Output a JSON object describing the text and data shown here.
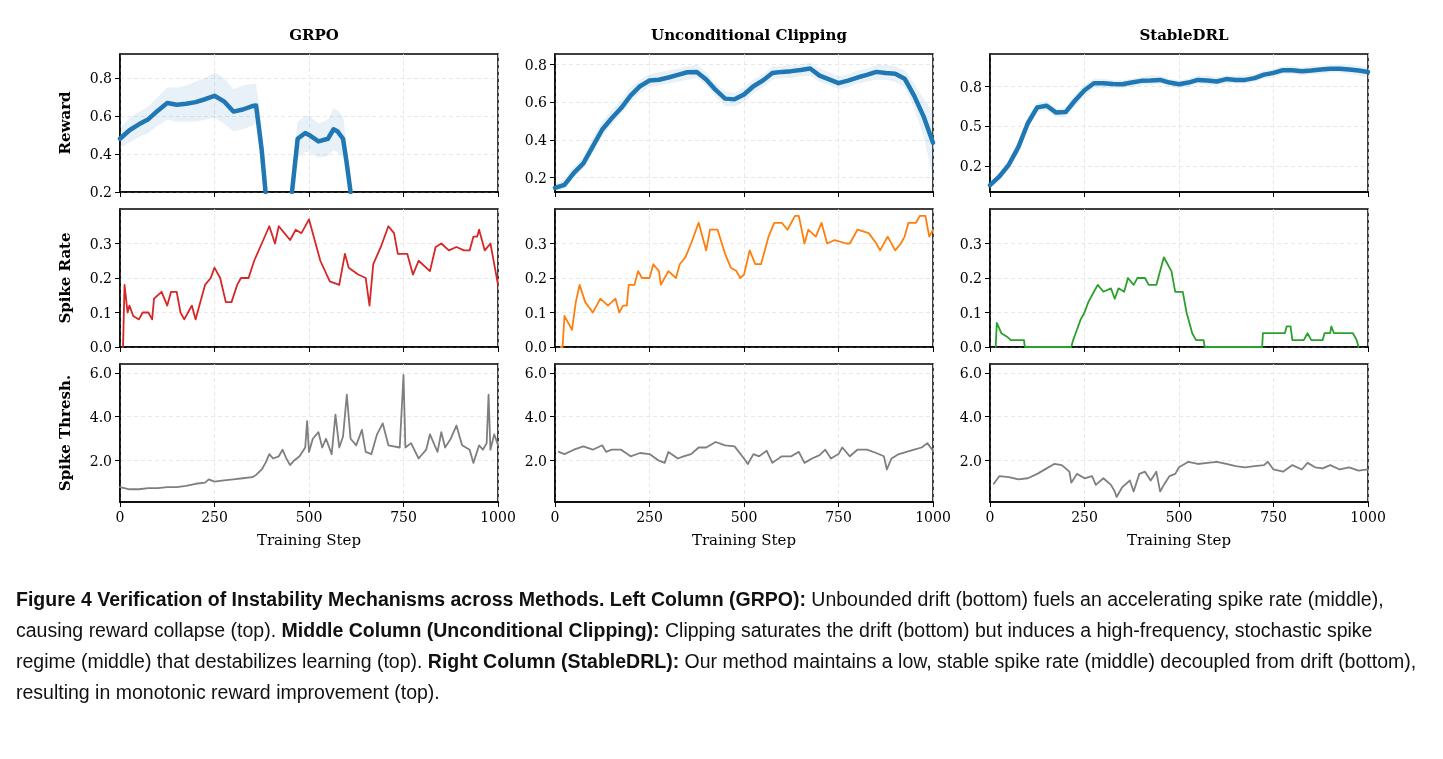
{
  "chart_data": [
    {
      "type": "line",
      "title": "GRPO",
      "ylabel": "Reward",
      "xlim": [
        0,
        1000
      ],
      "xticks": [
        0,
        250,
        500,
        750,
        1000
      ],
      "ylim": [
        0.2,
        0.926
      ],
      "yticks": [
        {
          "value": 0.2,
          "label": "0.2"
        },
        {
          "value": 0.4,
          "label": "0.4"
        },
        {
          "value": 0.6,
          "label": "0.6"
        },
        {
          "value": 0.8,
          "label": "0.8"
        }
      ],
      "grid": true,
      "tick_labels": "y",
      "marker": "none",
      "line_style": "solid",
      "series": [
        {
          "color": "#1f77b4",
          "x": [
            0,
            25,
            50,
            75,
            100,
            125,
            150,
            175,
            200,
            225,
            250,
            275,
            300,
            325,
            350,
            360,
            375,
            385,
            400,
            450,
            455,
            470,
            490,
            500,
            525,
            550,
            565,
            575,
            590,
            600,
            610
          ],
          "values": [
            0.48,
            0.525,
            0.556,
            0.583,
            0.628,
            0.668,
            0.659,
            0.664,
            0.673,
            0.688,
            0.706,
            0.677,
            0.623,
            0.634,
            0.652,
            0.655,
            0.42,
            0.2,
            null,
            null,
            0.2,
            0.48,
            0.51,
            0.5,
            0.466,
            0.48,
            0.53,
            0.52,
            0.48,
            0.35,
            0.2
          ],
          "lower": [
            0.43,
            0.46,
            0.49,
            0.51,
            0.55,
            0.58,
            0.57,
            0.57,
            0.57,
            0.58,
            0.59,
            0.56,
            0.52,
            0.53,
            0.55,
            0.56,
            0.3,
            0.2,
            null,
            null,
            0.2,
            0.38,
            0.41,
            0.41,
            0.38,
            0.39,
            0.42,
            0.41,
            0.38,
            0.25,
            0.2
          ],
          "upper": [
            0.53,
            0.59,
            0.62,
            0.65,
            0.7,
            0.75,
            0.75,
            0.76,
            0.78,
            0.8,
            0.83,
            0.8,
            0.74,
            0.76,
            0.77,
            0.77,
            0.55,
            0.3,
            null,
            null,
            0.3,
            0.57,
            0.6,
            0.6,
            0.56,
            0.58,
            0.64,
            0.63,
            0.6,
            0.45,
            0.22
          ]
        }
      ]
    },
    {
      "type": "line",
      "title": "Unconditional Clipping",
      "xlim": [
        0,
        1000
      ],
      "xticks": [
        0,
        250,
        500,
        750,
        1000
      ],
      "ylim": [
        0.124,
        0.857
      ],
      "yticks": [
        {
          "value": 0.2,
          "label": "0.2"
        },
        {
          "value": 0.4,
          "label": "0.4"
        },
        {
          "value": 0.6,
          "label": "0.6"
        },
        {
          "value": 0.8,
          "label": "0.8"
        }
      ],
      "grid": true,
      "tick_labels": "y",
      "marker": "none",
      "line_style": "solid",
      "series": [
        {
          "color": "#1f77b4",
          "x": [
            0,
            25,
            50,
            75,
            100,
            125,
            150,
            175,
            200,
            225,
            250,
            275,
            300,
            325,
            350,
            375,
            400,
            425,
            450,
            475,
            500,
            525,
            550,
            575,
            600,
            625,
            650,
            675,
            700,
            725,
            750,
            775,
            800,
            825,
            850,
            875,
            900,
            925,
            950,
            975,
            1000
          ],
          "values": [
            0.146,
            0.162,
            0.226,
            0.276,
            0.366,
            0.456,
            0.516,
            0.57,
            0.636,
            0.686,
            0.716,
            0.72,
            0.732,
            0.746,
            0.76,
            0.762,
            0.722,
            0.666,
            0.62,
            0.616,
            0.642,
            0.686,
            0.716,
            0.756,
            0.762,
            0.766,
            0.772,
            0.78,
            0.742,
            0.722,
            0.702,
            0.716,
            0.732,
            0.746,
            0.762,
            0.756,
            0.752,
            0.726,
            0.636,
            0.526,
            0.386
          ],
          "lower": [
            0.13,
            0.14,
            0.2,
            0.25,
            0.33,
            0.42,
            0.48,
            0.54,
            0.6,
            0.65,
            0.68,
            0.69,
            0.7,
            0.71,
            0.72,
            0.73,
            0.69,
            0.63,
            0.58,
            0.58,
            0.6,
            0.65,
            0.68,
            0.72,
            0.73,
            0.73,
            0.74,
            0.74,
            0.71,
            0.69,
            0.67,
            0.68,
            0.7,
            0.71,
            0.72,
            0.72,
            0.71,
            0.68,
            0.57,
            0.42,
            0.2
          ],
          "upper": [
            0.17,
            0.19,
            0.26,
            0.31,
            0.41,
            0.5,
            0.56,
            0.61,
            0.68,
            0.72,
            0.75,
            0.76,
            0.77,
            0.78,
            0.79,
            0.8,
            0.76,
            0.7,
            0.66,
            0.65,
            0.68,
            0.72,
            0.75,
            0.79,
            0.79,
            0.8,
            0.8,
            0.81,
            0.78,
            0.76,
            0.74,
            0.75,
            0.77,
            0.78,
            0.8,
            0.8,
            0.79,
            0.77,
            0.7,
            0.62,
            0.55
          ]
        }
      ]
    },
    {
      "type": "line",
      "title": "StableDRL",
      "xlim": [
        0,
        1000
      ],
      "xticks": [
        0,
        250,
        500,
        750,
        1000
      ],
      "ylim": [
        0.087,
        0.956
      ],
      "yticks": [
        {
          "value": 0.25,
          "label": "0.2"
        },
        {
          "value": 0.5,
          "label": "0.5"
        },
        {
          "value": 0.75,
          "label": "0.8"
        }
      ],
      "grid": true,
      "tick_labels": "y",
      "marker": "none",
      "line_style": "solid",
      "series": [
        {
          "color": "#1f77b4",
          "x": [
            0,
            25,
            50,
            75,
            100,
            125,
            150,
            175,
            200,
            225,
            250,
            275,
            300,
            325,
            350,
            375,
            400,
            425,
            450,
            475,
            500,
            525,
            550,
            575,
            600,
            625,
            650,
            675,
            700,
            725,
            750,
            775,
            800,
            825,
            850,
            875,
            900,
            925,
            950,
            975,
            1000
          ],
          "values": [
            0.13,
            0.185,
            0.26,
            0.37,
            0.52,
            0.62,
            0.63,
            0.587,
            0.59,
            0.663,
            0.728,
            0.772,
            0.772,
            0.767,
            0.765,
            0.776,
            0.787,
            0.789,
            0.793,
            0.776,
            0.765,
            0.776,
            0.793,
            0.789,
            0.783,
            0.798,
            0.793,
            0.793,
            0.804,
            0.826,
            0.837,
            0.854,
            0.854,
            0.848,
            0.852,
            0.859,
            0.863,
            0.863,
            0.859,
            0.852,
            0.843
          ],
          "lower": [
            0.11,
            0.16,
            0.23,
            0.33,
            0.48,
            0.59,
            0.6,
            0.56,
            0.56,
            0.63,
            0.69,
            0.74,
            0.74,
            0.74,
            0.74,
            0.75,
            0.76,
            0.76,
            0.77,
            0.75,
            0.74,
            0.75,
            0.77,
            0.76,
            0.76,
            0.77,
            0.77,
            0.77,
            0.78,
            0.8,
            0.81,
            0.83,
            0.83,
            0.82,
            0.83,
            0.83,
            0.84,
            0.84,
            0.83,
            0.82,
            0.81
          ],
          "upper": [
            0.15,
            0.21,
            0.29,
            0.41,
            0.56,
            0.65,
            0.66,
            0.61,
            0.62,
            0.7,
            0.76,
            0.8,
            0.8,
            0.79,
            0.79,
            0.8,
            0.81,
            0.82,
            0.82,
            0.8,
            0.79,
            0.8,
            0.82,
            0.82,
            0.81,
            0.82,
            0.82,
            0.82,
            0.83,
            0.85,
            0.86,
            0.88,
            0.88,
            0.87,
            0.88,
            0.88,
            0.89,
            0.89,
            0.89,
            0.88,
            0.87
          ]
        }
      ]
    },
    {
      "type": "line",
      "ylabel": "Spike Rate",
      "xlim": [
        0,
        1000
      ],
      "xticks": [
        0,
        250,
        500,
        750,
        1000
      ],
      "ylim": [
        0,
        0.4
      ],
      "yticks": [
        {
          "value": 0,
          "label": "0.0"
        },
        {
          "value": 0.1,
          "label": "0.1"
        },
        {
          "value": 0.2,
          "label": "0.2"
        },
        {
          "value": 0.3,
          "label": "0.3"
        }
      ],
      "grid": true,
      "tick_labels": "y",
      "marker": "none",
      "line_style": "solid",
      "series": [
        {
          "color": "#d62728",
          "x": [
            8,
            12,
            20,
            25,
            35,
            50,
            60,
            75,
            85,
            90,
            110,
            125,
            135,
            150,
            160,
            170,
            180,
            190,
            200,
            210,
            225,
            240,
            250,
            265,
            280,
            295,
            310,
            320,
            340,
            355,
            375,
            395,
            410,
            420,
            435,
            450,
            465,
            480,
            500,
            510,
            530,
            555,
            580,
            595,
            605,
            630,
            650,
            660,
            670,
            690,
            710,
            725,
            735,
            760,
            775,
            790,
            820,
            835,
            850,
            870,
            890,
            910,
            925,
            935,
            945,
            950,
            965,
            980,
            990,
            1000
          ],
          "values": [
            0,
            0.18,
            0.1,
            0.12,
            0.09,
            0.08,
            0.1,
            0.1,
            0.08,
            0.14,
            0.16,
            0.12,
            0.16,
            0.16,
            0.1,
            0.08,
            0.1,
            0.12,
            0.08,
            0.12,
            0.18,
            0.2,
            0.23,
            0.2,
            0.13,
            0.13,
            0.18,
            0.2,
            0.2,
            0.25,
            0.3,
            0.35,
            0.3,
            0.35,
            0.33,
            0.31,
            0.34,
            0.33,
            0.37,
            0.33,
            0.25,
            0.19,
            0.18,
            0.27,
            0.23,
            0.21,
            0.2,
            0.12,
            0.24,
            0.29,
            0.35,
            0.33,
            0.27,
            0.27,
            0.21,
            0.25,
            0.22,
            0.29,
            0.3,
            0.28,
            0.29,
            0.28,
            0.28,
            0.32,
            0.32,
            0.34,
            0.28,
            0.3,
            0.24,
            0.18
          ]
        }
      ]
    },
    {
      "type": "line",
      "xlim": [
        0,
        1000
      ],
      "xticks": [
        0,
        250,
        500,
        750,
        1000
      ],
      "ylim": [
        0,
        0.4
      ],
      "yticks": [
        {
          "value": 0,
          "label": "0.0"
        },
        {
          "value": 0.1,
          "label": "0.1"
        },
        {
          "value": 0.2,
          "label": "0.2"
        },
        {
          "value": 0.3,
          "label": "0.3"
        }
      ],
      "grid": true,
      "tick_labels": "y",
      "marker": "none",
      "line_style": "solid",
      "series": [
        {
          "color": "#ff7f0e",
          "x": [
            15,
            20,
            25,
            35,
            45,
            55,
            65,
            80,
            100,
            110,
            120,
            140,
            160,
            170,
            180,
            190,
            195,
            210,
            220,
            230,
            250,
            260,
            275,
            280,
            290,
            300,
            320,
            330,
            345,
            360,
            380,
            390,
            400,
            410,
            430,
            450,
            465,
            480,
            490,
            500,
            515,
            530,
            545,
            565,
            580,
            600,
            615,
            635,
            645,
            660,
            670,
            690,
            705,
            720,
            740,
            770,
            780,
            800,
            830,
            850,
            860,
            880,
            900,
            915,
            925,
            935,
            955,
            965,
            980,
            985,
            990,
            1000
          ],
          "values": [
            0,
            0,
            0.09,
            0.07,
            0.05,
            0.13,
            0.18,
            0.13,
            0.1,
            0.12,
            0.14,
            0.12,
            0.14,
            0.1,
            0.12,
            0.12,
            0.18,
            0.18,
            0.22,
            0.2,
            0.2,
            0.24,
            0.22,
            0.18,
            0.2,
            0.22,
            0.2,
            0.24,
            0.26,
            0.3,
            0.36,
            0.32,
            0.28,
            0.34,
            0.34,
            0.27,
            0.23,
            0.22,
            0.2,
            0.21,
            0.28,
            0.24,
            0.24,
            0.32,
            0.36,
            0.36,
            0.34,
            0.38,
            0.38,
            0.3,
            0.34,
            0.32,
            0.36,
            0.3,
            0.31,
            0.3,
            0.3,
            0.34,
            0.33,
            0.3,
            0.28,
            0.32,
            0.28,
            0.3,
            0.32,
            0.36,
            0.36,
            0.38,
            0.38,
            0.35,
            0.32,
            0.34
          ]
        }
      ]
    },
    {
      "type": "line",
      "xlim": [
        0,
        1000
      ],
      "xticks": [
        0,
        250,
        500,
        750,
        1000
      ],
      "ylim": [
        0,
        0.4
      ],
      "yticks": [
        {
          "value": 0,
          "label": "0.0"
        },
        {
          "value": 0.1,
          "label": "0.1"
        },
        {
          "value": 0.2,
          "label": "0.2"
        },
        {
          "value": 0.3,
          "label": "0.3"
        }
      ],
      "grid": true,
      "tick_labels": "y",
      "marker": "none",
      "line_style": "solid",
      "series": [
        {
          "color": "#2ca02c",
          "x": [
            15,
            18,
            30,
            45,
            55,
            90,
            92,
            215,
            220,
            230,
            240,
            250,
            260,
            275,
            285,
            300,
            320,
            330,
            340,
            355,
            365,
            380,
            390,
            410,
            420,
            440,
            450,
            460,
            470,
            480,
            490,
            510,
            520,
            535,
            545,
            565,
            568,
            720,
            722,
            780,
            785,
            795,
            800,
            830,
            840,
            850,
            880,
            885,
            900,
            903,
            910,
            960,
            970,
            975
          ],
          "values": [
            0,
            0.07,
            0.04,
            0.03,
            0.02,
            0.02,
            0,
            0,
            0.02,
            0.05,
            0.08,
            0.1,
            0.13,
            0.16,
            0.18,
            0.16,
            0.17,
            0.14,
            0.17,
            0.16,
            0.2,
            0.18,
            0.2,
            0.2,
            0.18,
            0.18,
            0.22,
            0.26,
            0.24,
            0.22,
            0.16,
            0.16,
            0.1,
            0.04,
            0.02,
            0.02,
            0,
            0,
            0.04,
            0.04,
            0.06,
            0.06,
            0.02,
            0.02,
            0.04,
            0.02,
            0.02,
            0.04,
            0.04,
            0.06,
            0.04,
            0.04,
            0.02,
            0
          ]
        }
      ]
    },
    {
      "type": "line",
      "ylabel": "Spike Thresh.",
      "xlabel": "Training Step",
      "xlim": [
        0,
        1000
      ],
      "xticks": [
        0,
        250,
        500,
        750,
        1000
      ],
      "ylim": [
        0.12,
        6.4
      ],
      "yticks": [
        {
          "value": 2,
          "label": "2.0"
        },
        {
          "value": 4,
          "label": "4.0"
        },
        {
          "value": 6,
          "label": "6.0"
        }
      ],
      "grid": true,
      "marker": "none",
      "line_style": "solid",
      "series": [
        {
          "color": "#7f7f7f",
          "x": [
            0,
            25,
            50,
            75,
            100,
            125,
            150,
            175,
            200,
            225,
            235,
            250,
            275,
            300,
            325,
            350,
            360,
            375,
            385,
            395,
            405,
            420,
            430,
            440,
            450,
            460,
            475,
            490,
            495,
            500,
            510,
            525,
            535,
            545,
            560,
            570,
            580,
            590,
            600,
            610,
            625,
            640,
            650,
            665,
            680,
            695,
            710,
            740,
            750,
            755,
            770,
            790,
            810,
            820,
            840,
            850,
            860,
            875,
            890,
            905,
            925,
            935,
            950,
            960,
            970,
            975,
            980,
            990,
            1000
          ],
          "values": [
            0.8,
            0.7,
            0.7,
            0.75,
            0.75,
            0.8,
            0.8,
            0.85,
            0.95,
            1.0,
            1.15,
            1.05,
            1.1,
            1.15,
            1.2,
            1.25,
            1.35,
            1.6,
            1.9,
            2.3,
            2.1,
            2.2,
            2.5,
            2.1,
            1.8,
            2.0,
            2.2,
            2.6,
            3.8,
            2.4,
            3.0,
            3.3,
            2.6,
            3.0,
            2.3,
            4.1,
            2.6,
            3.1,
            5.0,
            3.0,
            2.7,
            3.4,
            2.4,
            2.3,
            3.2,
            3.7,
            2.7,
            2.6,
            5.9,
            2.6,
            2.8,
            2.1,
            2.5,
            3.2,
            2.4,
            3.3,
            2.6,
            3.0,
            3.6,
            2.7,
            2.5,
            1.9,
            2.7,
            2.5,
            2.8,
            5.0,
            2.5,
            3.2,
            2.7
          ]
        }
      ]
    },
    {
      "type": "line",
      "xlabel": "Training Step",
      "xlim": [
        0,
        1000
      ],
      "xticks": [
        0,
        250,
        500,
        750,
        1000
      ],
      "ylim": [
        0.12,
        6.4
      ],
      "yticks": [
        {
          "value": 2,
          "label": "2.0"
        },
        {
          "value": 4,
          "label": "4.0"
        },
        {
          "value": 6,
          "label": "6.0"
        }
      ],
      "grid": true,
      "marker": "none",
      "line_style": "solid",
      "series": [
        {
          "color": "#7f7f7f",
          "x": [
            10,
            25,
            50,
            75,
            100,
            125,
            135,
            150,
            175,
            200,
            225,
            250,
            275,
            290,
            300,
            325,
            340,
            360,
            380,
            400,
            425,
            450,
            475,
            500,
            510,
            525,
            540,
            560,
            575,
            600,
            625,
            645,
            660,
            680,
            700,
            715,
            730,
            750,
            760,
            780,
            800,
            825,
            850,
            870,
            878,
            890,
            910,
            930,
            950,
            970,
            985,
            1000
          ],
          "values": [
            2.4,
            2.3,
            2.5,
            2.65,
            2.5,
            2.7,
            2.4,
            2.5,
            2.5,
            2.2,
            2.35,
            2.3,
            2.0,
            1.9,
            2.4,
            2.1,
            2.2,
            2.3,
            2.6,
            2.6,
            2.85,
            2.7,
            2.65,
            2.1,
            1.85,
            2.3,
            2.2,
            2.45,
            1.9,
            2.2,
            2.2,
            2.4,
            1.9,
            2.1,
            2.25,
            2.5,
            2.1,
            2.3,
            2.6,
            2.2,
            2.5,
            2.5,
            2.35,
            2.2,
            1.6,
            2.1,
            2.3,
            2.4,
            2.5,
            2.6,
            2.8,
            2.45
          ]
        }
      ]
    },
    {
      "type": "line",
      "xlabel": "Training Step",
      "xlim": [
        0,
        1000
      ],
      "xticks": [
        0,
        250,
        500,
        750,
        1000
      ],
      "ylim": [
        0.12,
        6.4
      ],
      "yticks": [
        {
          "value": 2,
          "label": "2.0"
        },
        {
          "value": 4,
          "label": "4.0"
        },
        {
          "value": 6,
          "label": "6.0"
        }
      ],
      "grid": true,
      "marker": "none",
      "line_style": "solid",
      "annotations": [
        "Figure 4  Verification of Instability Mechanisms across Methods. Left Column (GRPO):",
        "Unbounded drift (bottom) fuels an accelerating spike rate (middle), causing reward collapse (top).",
        "Middle Column (Unconditional Clipping):",
        "Clipping saturates the drift (bottom) but induces a high-frequency, stochastic spike regime (middle) that destabilizes learning (top).",
        "Right Column (StableDRL):",
        "Our method maintains a low, stable spike rate (middle) decoupled from drift (bottom), resulting in monotonic reward improvement (top)."
      ],
      "series": [
        {
          "color": "#7f7f7f",
          "x": [
            10,
            25,
            50,
            75,
            100,
            125,
            150,
            170,
            190,
            210,
            215,
            230,
            250,
            270,
            280,
            300,
            320,
            330,
            335,
            350,
            370,
            380,
            395,
            410,
            425,
            440,
            450,
            460,
            475,
            490,
            500,
            525,
            550,
            575,
            600,
            625,
            650,
            675,
            700,
            725,
            735,
            750,
            775,
            800,
            825,
            840,
            860,
            880,
            900,
            925,
            950,
            975,
            1000
          ],
          "values": [
            0.95,
            1.3,
            1.25,
            1.15,
            1.2,
            1.4,
            1.65,
            1.85,
            1.8,
            1.5,
            1.0,
            1.4,
            1.2,
            1.3,
            0.9,
            1.2,
            0.9,
            0.6,
            0.35,
            0.8,
            1.1,
            0.6,
            1.4,
            1.5,
            1.1,
            1.5,
            0.6,
            0.9,
            1.3,
            1.4,
            1.7,
            1.95,
            1.85,
            1.9,
            1.95,
            1.85,
            1.75,
            1.7,
            1.75,
            1.8,
            1.95,
            1.6,
            1.5,
            1.8,
            1.6,
            1.9,
            1.7,
            1.65,
            1.8,
            1.6,
            1.7,
            1.55,
            1.6
          ]
        }
      ]
    }
  ]
}
